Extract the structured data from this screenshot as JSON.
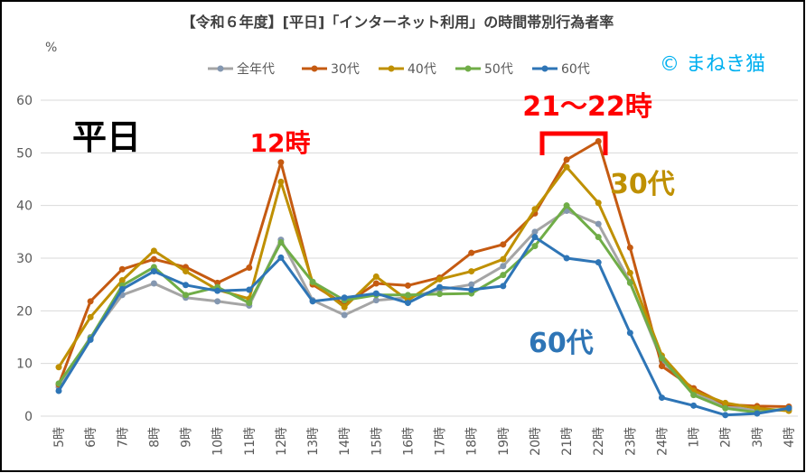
{
  "chart_data": {
    "type": "line",
    "title": "【令和６年度】[平日]「インターネット利用」の時間帯別行為者率",
    "ylabel": "%",
    "ylim": [
      0,
      60
    ],
    "yticks": [
      0,
      10,
      20,
      30,
      40,
      50,
      60
    ],
    "grid": true,
    "legend_position": "top",
    "categories": [
      "5時",
      "6時",
      "7時",
      "8時",
      "9時",
      "10時",
      "11時",
      "12時",
      "13時",
      "14時",
      "15時",
      "16時",
      "17時",
      "18時",
      "19時",
      "20時",
      "21時",
      "22時",
      "23時",
      "24時",
      "1時",
      "2時",
      "3時",
      "4時"
    ],
    "series": [
      {
        "name": "全年代",
        "color": "#a5a5a5",
        "marker_color": "#8497b0",
        "values": [
          5.5,
          15.0,
          23.0,
          25.2,
          22.5,
          21.8,
          21.0,
          33.5,
          22.0,
          19.2,
          22.0,
          22.5,
          24.0,
          25.0,
          28.5,
          35.0,
          39.0,
          36.5,
          25.5,
          10.5,
          4.5,
          2.0,
          1.0,
          1.2
        ]
      },
      {
        "name": "30代",
        "color": "#c55a11",
        "marker_color": "#c55a11",
        "values": [
          6.0,
          21.8,
          27.9,
          29.8,
          28.3,
          25.3,
          28.2,
          48.2,
          25.0,
          21.2,
          25.2,
          24.8,
          26.3,
          31.0,
          32.6,
          38.5,
          48.7,
          52.2,
          32.0,
          9.5,
          5.3,
          2.2,
          1.9,
          1.8
        ]
      },
      {
        "name": "40代",
        "color": "#bf9000",
        "marker_color": "#bf9000",
        "values": [
          9.3,
          18.8,
          25.8,
          31.4,
          27.5,
          24.0,
          22.3,
          44.5,
          25.4,
          20.7,
          26.5,
          22.0,
          26.0,
          27.5,
          29.8,
          39.3,
          47.3,
          40.5,
          27.2,
          11.5,
          4.8,
          2.5,
          1.5,
          1.0
        ]
      },
      {
        "name": "50代",
        "color": "#70ad47",
        "marker_color": "#70ad47",
        "values": [
          6.2,
          14.8,
          24.8,
          28.3,
          23.0,
          24.5,
          21.5,
          33.0,
          25.5,
          22.0,
          23.0,
          23.0,
          23.2,
          23.3,
          26.8,
          32.3,
          40.0,
          34.0,
          25.3,
          11.0,
          4.0,
          1.5,
          0.7,
          1.5
        ]
      },
      {
        "name": "60代",
        "color": "#2e75b6",
        "marker_color": "#2e75b6",
        "values": [
          4.8,
          14.5,
          24.1,
          27.5,
          24.9,
          23.8,
          24.0,
          30.1,
          21.8,
          22.5,
          23.3,
          21.5,
          24.5,
          24.0,
          24.7,
          34.0,
          30.0,
          29.2,
          15.8,
          3.5,
          2.0,
          0.2,
          0.5,
          1.5
        ]
      }
    ],
    "annotations": [
      {
        "text": "平日",
        "color": "#000000"
      },
      {
        "text": "12時",
        "color": "#ff0000"
      },
      {
        "text": "21～22時",
        "color": "#ff0000"
      },
      {
        "text": "30代",
        "color": "#bf9000"
      },
      {
        "text": "60代",
        "color": "#2e75b6"
      },
      {
        "text": "© まねき猫",
        "color": "#00b0f0"
      }
    ]
  }
}
